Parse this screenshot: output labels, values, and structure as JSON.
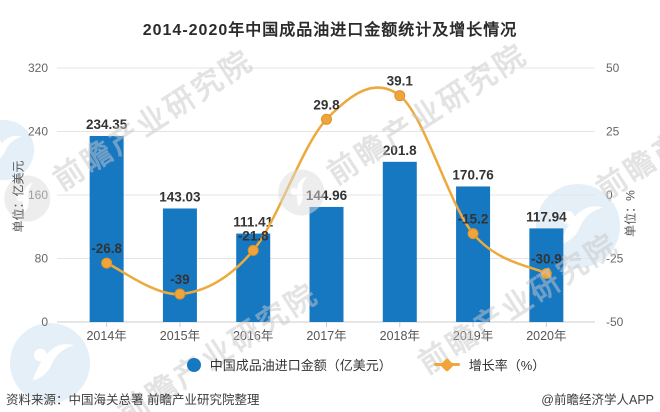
{
  "title": "2014-2020年中国成品油进口金额统计及增长情况",
  "chart_data": {
    "type": "bar+line",
    "categories": [
      "2014年",
      "2015年",
      "2016年",
      "2017年",
      "2018年",
      "2019年",
      "2020年"
    ],
    "series": [
      {
        "name": "中国成品油进口金额（亿美元）",
        "type": "bar",
        "axis": "left",
        "values": [
          234.35,
          143.03,
          111.41,
          144.96,
          201.8,
          170.76,
          117.94
        ]
      },
      {
        "name": "增长率（%）",
        "type": "line",
        "axis": "right",
        "values": [
          -26.8,
          -39,
          -21.8,
          29.8,
          39.1,
          -15.2,
          -30.9
        ]
      }
    ],
    "left_axis": {
      "label": "单位：亿美元",
      "min": 0,
      "max": 320,
      "ticks": [
        0,
        80,
        160,
        240,
        320
      ]
    },
    "right_axis": {
      "label": "单位：%",
      "min": -50,
      "max": 50,
      "ticks": [
        -50,
        -25,
        0,
        25,
        50
      ]
    },
    "legend_position": "bottom",
    "grid": true
  },
  "colors": {
    "bar": "#1778c2",
    "line": "#ecaa3d",
    "marker_fill": "#f0a43a",
    "marker_stroke": "#dd9329",
    "data_label": "#333333",
    "tick_label": "#666666",
    "x_label": "#555555",
    "grid_line": "#e4e4e4",
    "axis_line": "#cccccc"
  },
  "watermark": {
    "text": "前瞻产业研究院"
  },
  "footer": {
    "source": "资料来源：中国海关总署 前瞻产业研究院整理",
    "credit": "@前瞻经济学人APP"
  }
}
